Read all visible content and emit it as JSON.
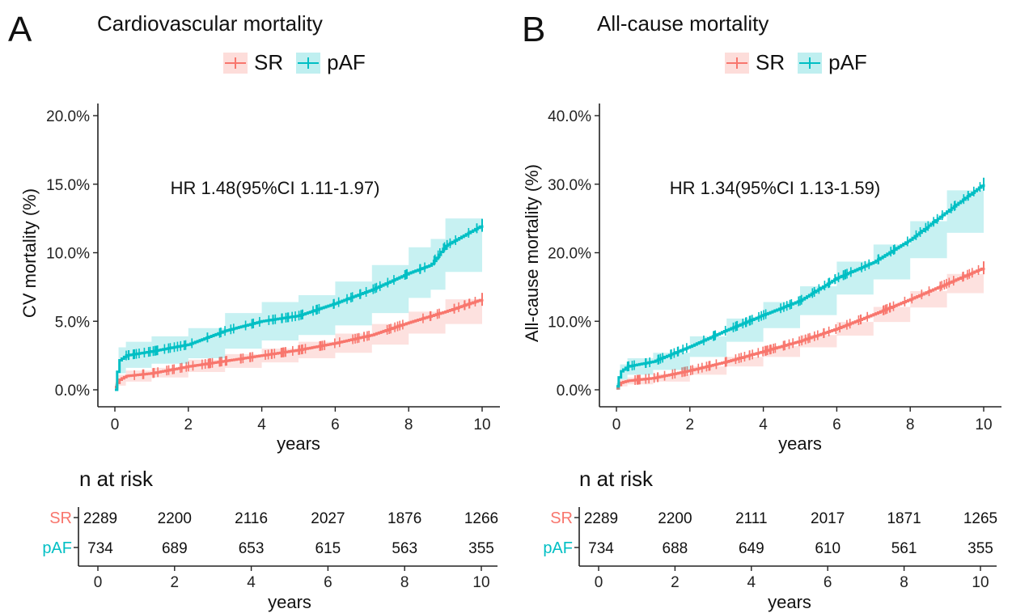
{
  "colors": {
    "SR": "#F8766D",
    "pAF": "#00BFC4",
    "SR_band": "#F8766D",
    "pAF_band": "#00BFC4"
  },
  "panels": [
    {
      "letter": "A",
      "title": "Cardiovascular mortality",
      "legend": [
        "SR",
        "pAF"
      ],
      "hr_label": "HR 1.48(95%CI 1.11-1.97)",
      "risk_title": "n at risk",
      "risk_xlabel": "years"
    },
    {
      "letter": "B",
      "title": "All-cause mortality",
      "legend": [
        "SR",
        "pAF"
      ],
      "hr_label": "HR 1.34(95%CI 1.13-1.59)",
      "risk_title": "n at risk",
      "risk_xlabel": "years"
    }
  ],
  "chart_data": [
    {
      "type": "line",
      "title": "Cardiovascular mortality",
      "xlabel": "years",
      "ylabel": "CV mortality (%)",
      "xlim": [
        0,
        10
      ],
      "ylim": [
        0,
        20
      ],
      "x_ticks": [
        0,
        2,
        4,
        6,
        8,
        10
      ],
      "y_ticks": [
        0,
        5,
        10,
        15,
        20
      ],
      "y_tick_labels": [
        "0.0%",
        "5.0%",
        "10.0%",
        "15.0%",
        "20.0%"
      ],
      "legend_position": "top",
      "annotation": "HR 1.48(95%CI 1.11-1.97)",
      "series": [
        {
          "name": "SR",
          "x": [
            0,
            0.1,
            0.3,
            1,
            2,
            3,
            4,
            5,
            6,
            7,
            8,
            9,
            10
          ],
          "y": [
            0.2,
            0.7,
            1.0,
            1.2,
            1.7,
            2.1,
            2.5,
            2.9,
            3.4,
            4.0,
            4.9,
            5.7,
            6.6
          ],
          "lower": [
            0,
            0.3,
            0.6,
            0.9,
            1.3,
            1.6,
            2.0,
            2.3,
            2.7,
            3.3,
            4.1,
            4.8,
            5.5
          ],
          "upper": [
            0.5,
            1.1,
            1.4,
            1.6,
            2.2,
            2.6,
            3.0,
            3.5,
            4.1,
            4.8,
            5.7,
            6.6,
            7.8
          ]
        },
        {
          "name": "pAF",
          "x": [
            0,
            0.1,
            0.3,
            1,
            2,
            3,
            4,
            5,
            6,
            7,
            8,
            8.6,
            9,
            10
          ],
          "y": [
            0,
            2.1,
            2.5,
            2.8,
            3.3,
            4.3,
            5.0,
            5.4,
            6.3,
            7.3,
            8.5,
            9.1,
            10.5,
            12.0
          ],
          "lower": [
            0,
            1.2,
            1.6,
            1.9,
            2.3,
            3.0,
            3.6,
            4.0,
            4.7,
            5.6,
            6.7,
            7.3,
            8.6,
            9.7
          ],
          "upper": [
            0.4,
            3.1,
            3.5,
            3.9,
            4.5,
            5.6,
            6.4,
            6.9,
            7.9,
            9.1,
            10.4,
            11.0,
            12.5,
            14.7
          ]
        }
      ],
      "risk_table": {
        "title": "n at risk",
        "xlabel": "years",
        "x_ticks": [
          0,
          2,
          4,
          6,
          8,
          10
        ],
        "rows": [
          {
            "name": "SR",
            "values": [
              2289,
              2200,
              2116,
              2027,
              1876,
              1266
            ]
          },
          {
            "name": "pAF",
            "values": [
              734,
              689,
              653,
              615,
              563,
              355
            ]
          }
        ]
      }
    },
    {
      "type": "line",
      "title": "All-cause mortality",
      "xlabel": "years",
      "ylabel": "All-cause mortality (%)",
      "xlim": [
        0,
        10
      ],
      "ylim": [
        0,
        40
      ],
      "x_ticks": [
        0,
        2,
        4,
        6,
        8,
        10
      ],
      "y_ticks": [
        0,
        10,
        20,
        30,
        40
      ],
      "y_tick_labels": [
        "0.0%",
        "10.0%",
        "20.0%",
        "30.0%",
        "40.0%"
      ],
      "legend_position": "top",
      "annotation": "HR 1.34(95%CI 1.13-1.59)",
      "series": [
        {
          "name": "SR",
          "x": [
            0,
            0.1,
            0.3,
            1,
            2,
            3,
            4,
            5,
            6,
            7,
            8,
            9,
            10
          ],
          "y": [
            0.2,
            1.0,
            1.3,
            1.7,
            2.8,
            4.1,
            5.6,
            7.1,
            8.9,
            11.0,
            13.2,
            15.5,
            17.8
          ],
          "lower": [
            0,
            0.5,
            0.8,
            1.2,
            2.2,
            3.4,
            4.8,
            6.2,
            7.9,
            9.9,
            12.0,
            14.1,
            16.2
          ],
          "upper": [
            0.5,
            1.5,
            1.8,
            2.3,
            3.4,
            4.8,
            6.4,
            8.0,
            9.9,
            12.1,
            14.4,
            16.9,
            19.5
          ]
        },
        {
          "name": "pAF",
          "x": [
            0,
            0.1,
            0.3,
            1,
            2,
            3,
            4,
            5,
            6,
            7,
            8,
            9,
            10
          ],
          "y": [
            0.5,
            2.6,
            3.4,
            4.1,
            6.3,
            8.7,
            10.9,
            13.0,
            16.3,
            18.6,
            21.9,
            26.0,
            30.0
          ],
          "lower": [
            0,
            1.5,
            2.2,
            2.9,
            4.8,
            7.0,
            9.0,
            10.9,
            13.9,
            16.1,
            19.2,
            22.9,
            26.4
          ],
          "upper": [
            1.0,
            3.7,
            4.6,
            5.4,
            7.8,
            10.4,
            12.8,
            15.1,
            18.7,
            21.2,
            24.6,
            29.1,
            33.5
          ]
        }
      ],
      "risk_table": {
        "title": "n at risk",
        "xlabel": "years",
        "x_ticks": [
          0,
          2,
          4,
          6,
          8,
          10
        ],
        "rows": [
          {
            "name": "SR",
            "values": [
              2289,
              2200,
              2111,
              2017,
              1871,
              1265
            ]
          },
          {
            "name": "pAF",
            "values": [
              734,
              688,
              649,
              610,
              561,
              355
            ]
          }
        ]
      }
    }
  ]
}
